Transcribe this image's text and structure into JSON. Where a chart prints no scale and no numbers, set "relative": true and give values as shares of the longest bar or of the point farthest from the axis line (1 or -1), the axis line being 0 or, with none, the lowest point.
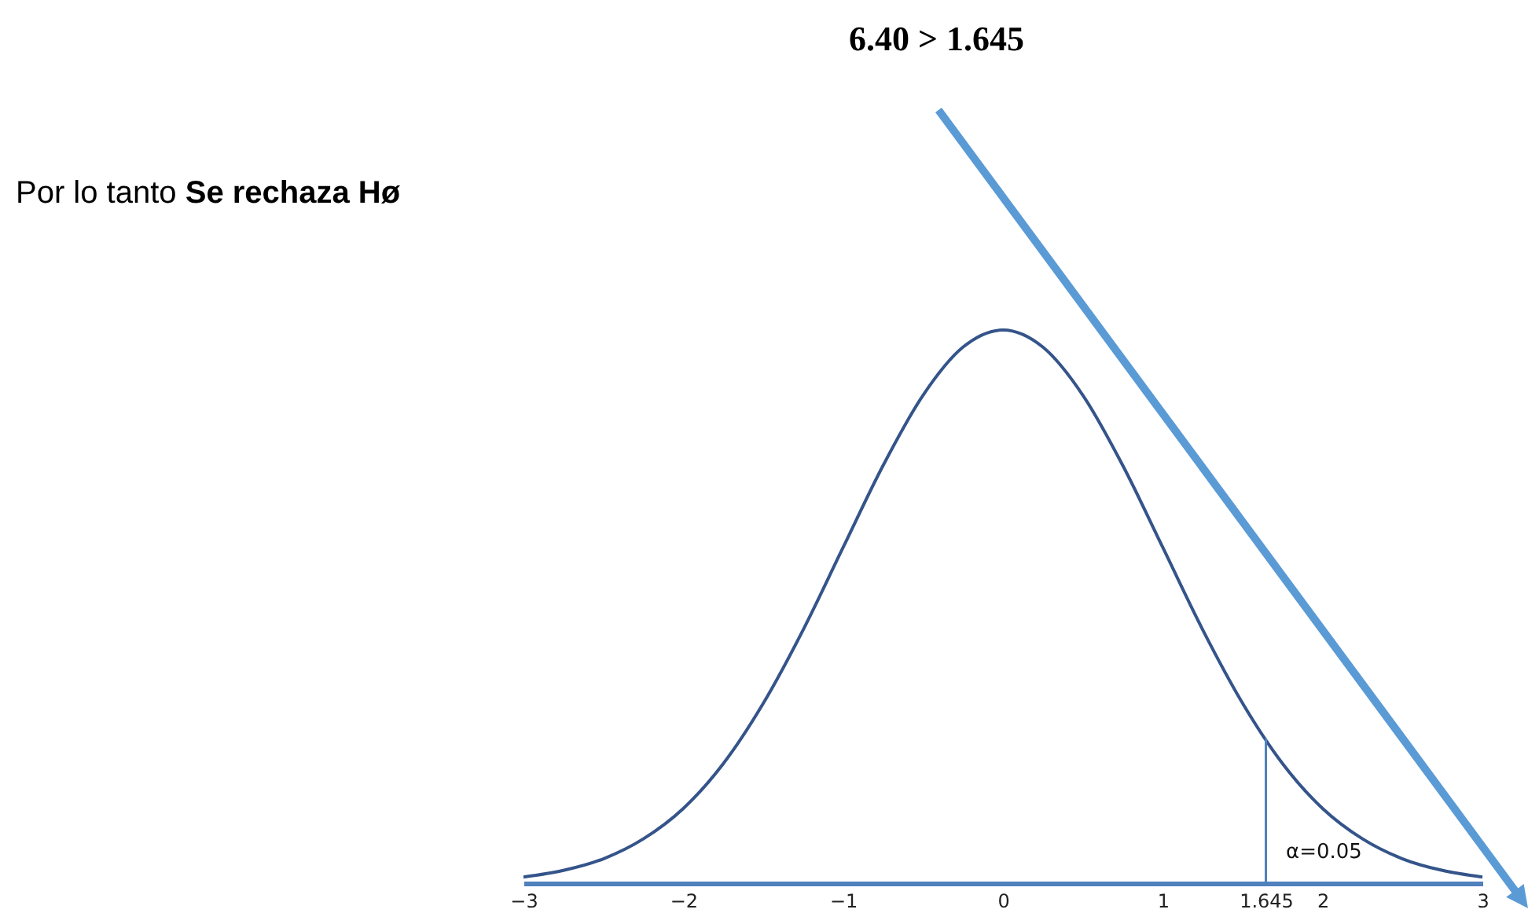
{
  "chart_data": {
    "type": "line",
    "title": "6.40 > 1.645",
    "relative": true,
    "annotations": [
      "Por lo tanto",
      "Se rechaza Hø",
      "α=0.05"
    ],
    "x": [
      -3,
      -2.75,
      -2.5,
      -2.25,
      -2,
      -1.75,
      -1.5,
      -1.25,
      -1,
      -0.75,
      -0.5,
      -0.25,
      0,
      0.25,
      0.5,
      0.75,
      1,
      1.25,
      1.5,
      1.75,
      2,
      2.25,
      2.5,
      2.75,
      3
    ],
    "series": [
      {
        "color": "#34548a",
        "values": [
          0.011,
          0.023,
          0.044,
          0.08,
          0.135,
          0.216,
          0.325,
          0.458,
          0.607,
          0.755,
          0.882,
          0.969,
          1,
          0.969,
          0.882,
          0.755,
          0.607,
          0.458,
          0.325,
          0.216,
          0.135,
          0.08,
          0.044,
          0.023,
          0.011
        ]
      }
    ],
    "xlim": [
      -3,
      3
    ],
    "xticks": [
      -3,
      -2,
      -1,
      0,
      1,
      1.645,
      2,
      3
    ],
    "ref_lines": [
      {
        "axis": "x",
        "value": 1.645,
        "color": "#4f81bd"
      }
    ],
    "grid": false,
    "marker": "none",
    "line_style": "solid"
  }
}
